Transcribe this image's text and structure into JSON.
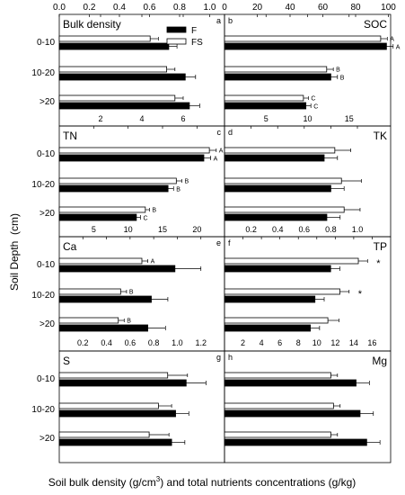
{
  "figure": {
    "ylabel": "Soil Depth  (cm)",
    "xlabel_main": "Soil bulk density (g/cm",
    "xlabel_sup": "3",
    "xlabel_tail": ") and total nutrients concentrations (g/kg)",
    "categories": [
      "0-10",
      "10-20",
      ">20"
    ],
    "legend": [
      {
        "name": "F",
        "color": "#000000"
      },
      {
        "name": "FS",
        "color": "#ffffff"
      }
    ],
    "top_ticks": [
      "0.0",
      "0.2",
      "0.4",
      "0.6",
      "0.8",
      "1.0",
      "0",
      "20",
      "40",
      "60",
      "80",
      "100"
    ]
  },
  "chart_data": [
    {
      "type": "bar",
      "panel_label": "a",
      "title": "Bulk density",
      "xlim": [
        0,
        8
      ],
      "ticks": [
        "2",
        "4",
        "6"
      ],
      "series": [
        {
          "name": "FS",
          "values": [
            4.4,
            5.2,
            5.6
          ],
          "errors": [
            0.4,
            0.4,
            0.4
          ]
        },
        {
          "name": "F",
          "values": [
            5.3,
            6.1,
            6.3
          ],
          "errors": [
            0.4,
            0.5,
            0.5
          ]
        }
      ],
      "letters_fs": [],
      "letters_f": [],
      "stars": []
    },
    {
      "type": "bar",
      "panel_label": "b",
      "title": "SOC",
      "xlim": [
        0,
        20
      ],
      "ticks": [
        "5",
        "10",
        "15"
      ],
      "series": [
        {
          "name": "FS",
          "values": [
            18.8,
            12.3,
            9.5
          ],
          "errors": [
            0.8,
            0.8,
            0.6
          ]
        },
        {
          "name": "F",
          "values": [
            19.5,
            12.8,
            9.8
          ],
          "errors": [
            0.8,
            0.8,
            0.6
          ]
        }
      ],
      "letters_fs": [
        "A",
        "B",
        "C"
      ],
      "letters_f": [
        "A",
        "B",
        "C"
      ],
      "stars": []
    },
    {
      "type": "bar",
      "panel_label": "c",
      "title": "TN",
      "xlim": [
        0,
        24
      ],
      "ticks": [
        "5",
        "10",
        "15",
        "20"
      ],
      "series": [
        {
          "name": "FS",
          "values": [
            21.8,
            17.0,
            12.5
          ],
          "errors": [
            1.0,
            0.8,
            0.6
          ]
        },
        {
          "name": "F",
          "values": [
            21.0,
            15.8,
            11.2
          ],
          "errors": [
            1.0,
            0.8,
            0.6
          ]
        }
      ],
      "letters_fs": [
        "A",
        "B",
        "B"
      ],
      "letters_f": [
        "A",
        "B",
        "C"
      ],
      "stars": []
    },
    {
      "type": "bar",
      "panel_label": "d",
      "title": "TK",
      "xlim": [
        0,
        1.25
      ],
      "ticks": [
        "0.2",
        "0.4",
        "0.6",
        "0.8",
        "1.0"
      ],
      "series": [
        {
          "name": "FS",
          "values": [
            0.83,
            0.88,
            0.9
          ],
          "errors": [
            0.12,
            0.15,
            0.12
          ]
        },
        {
          "name": "F",
          "values": [
            0.75,
            0.8,
            0.77
          ],
          "errors": [
            0.1,
            0.1,
            0.1
          ]
        }
      ],
      "letters_fs": [],
      "letters_f": [],
      "stars": []
    },
    {
      "type": "bar",
      "panel_label": "e",
      "title": "Ca",
      "xlim": [
        0,
        1.4
      ],
      "ticks": [
        "0.2",
        "0.4",
        "0.6",
        "0.8",
        "1.0",
        "1.2"
      ],
      "series": [
        {
          "name": "FS",
          "values": [
            0.7,
            0.52,
            0.5
          ],
          "errors": [
            0.05,
            0.05,
            0.05
          ]
        },
        {
          "name": "F",
          "values": [
            0.98,
            0.78,
            0.75
          ],
          "errors": [
            0.22,
            0.14,
            0.15
          ]
        }
      ],
      "letters_fs": [
        "A",
        "B",
        "B"
      ],
      "letters_f": [],
      "stars": []
    },
    {
      "type": "bar",
      "panel_label": "f",
      "title": "TP",
      "xlim": [
        0,
        18
      ],
      "ticks": [
        "2",
        "4",
        "6",
        "8",
        "10",
        "12",
        "14",
        "16"
      ],
      "series": [
        {
          "name": "FS",
          "values": [
            14.5,
            12.5,
            11.2
          ],
          "errors": [
            1.0,
            1.0,
            1.2
          ]
        },
        {
          "name": "F",
          "values": [
            11.5,
            9.8,
            9.3
          ],
          "errors": [
            1.0,
            1.0,
            1.0
          ]
        }
      ],
      "letters_fs": [],
      "letters_f": [],
      "stars": [
        "*",
        "*",
        ""
      ]
    },
    {
      "type": "bar",
      "panel_label": "g",
      "title": "S",
      "xlim": [
        0,
        1.25
      ],
      "ticks": [],
      "series": [
        {
          "name": "FS",
          "values": [
            0.82,
            0.75,
            0.68
          ],
          "errors": [
            0.15,
            0.1,
            0.15
          ]
        },
        {
          "name": "F",
          "values": [
            0.96,
            0.88,
            0.85
          ],
          "errors": [
            0.15,
            0.1,
            0.1
          ]
        }
      ],
      "letters_fs": [],
      "letters_f": [],
      "stars": []
    },
    {
      "type": "bar",
      "panel_label": "h",
      "title": "Mg",
      "xlim": [
        0,
        1.25
      ],
      "ticks": [],
      "series": [
        {
          "name": "FS",
          "values": [
            0.8,
            0.82,
            0.8
          ],
          "errors": [
            0.05,
            0.05,
            0.05
          ]
        },
        {
          "name": "F",
          "values": [
            0.99,
            1.02,
            1.07
          ],
          "errors": [
            0.1,
            0.1,
            0.1
          ]
        }
      ],
      "letters_fs": [],
      "letters_f": [],
      "stars": []
    }
  ]
}
